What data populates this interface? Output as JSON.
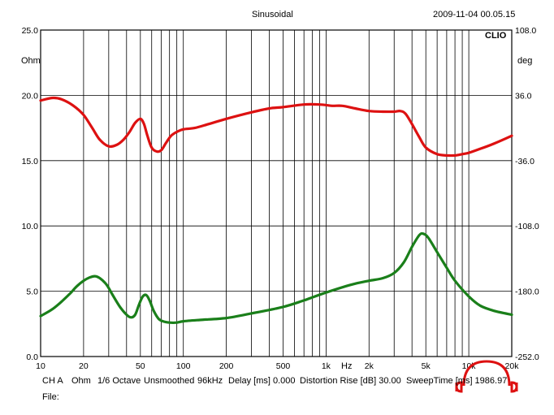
{
  "header": {
    "title": "Sinusoidal",
    "datetime": "2009-11-04 00.05.15",
    "brand": "CLIO"
  },
  "footer": {
    "channel": "CH A",
    "unit": "Ohm",
    "smoothing": "1/6 Octave",
    "smoothing_state": "Unsmoothed",
    "sample_rate": "96kHz",
    "delay": "Delay [ms] 0.000",
    "distortion": "Distortion Rise [dB] 30.00",
    "sweep": "SweepTime [ms] 1986.97",
    "file_label": "File:"
  },
  "colors": {
    "impedance": "#dd1111",
    "phase": "#1a7f1a",
    "logo": "#dd1111",
    "grid": "#000000"
  },
  "chart_data": {
    "type": "line",
    "title": "Sinusoidal",
    "x_scale": "log",
    "xlim": [
      10,
      20000
    ],
    "x_ticks": [
      {
        "v": 10,
        "label": "10"
      },
      {
        "v": 20,
        "label": "20"
      },
      {
        "v": 50,
        "label": "50"
      },
      {
        "v": 100,
        "label": "100"
      },
      {
        "v": 200,
        "label": "200"
      },
      {
        "v": 500,
        "label": "500"
      },
      {
        "v": 1000,
        "label": "1k"
      },
      {
        "v": 2000,
        "label": "2k"
      },
      {
        "v": 5000,
        "label": "5k"
      },
      {
        "v": 10000,
        "label": "10k"
      },
      {
        "v": 20000,
        "label": "20k"
      }
    ],
    "x_unit": "Hz",
    "left_axis": {
      "unit": "Ohm",
      "lim": [
        0,
        25
      ],
      "ticks": [
        "0.0",
        "5.0",
        "10.0",
        "15.0",
        "20.0",
        "25.0"
      ],
      "tick_values": [
        0,
        5,
        10,
        15,
        20,
        25
      ]
    },
    "right_axis": {
      "unit": "deg",
      "lim": [
        -252,
        108
      ],
      "ticks": [
        "-252.0",
        "-180.0",
        "-108.0",
        "-36.0",
        "36.0",
        "108.0"
      ],
      "tick_values": [
        -252,
        -180,
        -108,
        -36,
        36,
        108
      ]
    },
    "grid": true,
    "series": [
      {
        "color": "#dd1111",
        "axis": "left",
        "points": [
          [
            10,
            19.6
          ],
          [
            12,
            19.8
          ],
          [
            14,
            19.7
          ],
          [
            17,
            19.2
          ],
          [
            20,
            18.5
          ],
          [
            23,
            17.5
          ],
          [
            26,
            16.6
          ],
          [
            30,
            16.1
          ],
          [
            34,
            16.2
          ],
          [
            38,
            16.6
          ],
          [
            42,
            17.2
          ],
          [
            46,
            17.9
          ],
          [
            50,
            18.2
          ],
          [
            53,
            17.8
          ],
          [
            56,
            16.9
          ],
          [
            60,
            16.0
          ],
          [
            65,
            15.7
          ],
          [
            70,
            15.8
          ],
          [
            76,
            16.4
          ],
          [
            82,
            16.9
          ],
          [
            90,
            17.2
          ],
          [
            100,
            17.4
          ],
          [
            120,
            17.5
          ],
          [
            150,
            17.8
          ],
          [
            200,
            18.2
          ],
          [
            300,
            18.7
          ],
          [
            400,
            19.0
          ],
          [
            500,
            19.1
          ],
          [
            700,
            19.3
          ],
          [
            900,
            19.3
          ],
          [
            1100,
            19.2
          ],
          [
            1300,
            19.2
          ],
          [
            1600,
            19.0
          ],
          [
            2000,
            18.8
          ],
          [
            2500,
            18.75
          ],
          [
            3000,
            18.75
          ],
          [
            3300,
            18.8
          ],
          [
            3600,
            18.6
          ],
          [
            4000,
            17.8
          ],
          [
            4500,
            16.8
          ],
          [
            5000,
            16.0
          ],
          [
            6000,
            15.5
          ],
          [
            7000,
            15.4
          ],
          [
            8000,
            15.4
          ],
          [
            9000,
            15.5
          ],
          [
            10000,
            15.6
          ],
          [
            12000,
            15.9
          ],
          [
            15000,
            16.3
          ],
          [
            20000,
            16.9
          ]
        ]
      },
      {
        "color": "#1a7f1a",
        "axis": "left",
        "points": [
          [
            10,
            3.1
          ],
          [
            12,
            3.6
          ],
          [
            14,
            4.2
          ],
          [
            16,
            4.8
          ],
          [
            18,
            5.4
          ],
          [
            20,
            5.8
          ],
          [
            22,
            6.05
          ],
          [
            24,
            6.15
          ],
          [
            26,
            6.0
          ],
          [
            29,
            5.5
          ],
          [
            32,
            4.7
          ],
          [
            36,
            3.8
          ],
          [
            40,
            3.2
          ],
          [
            43,
            3.0
          ],
          [
            46,
            3.2
          ],
          [
            49,
            4.0
          ],
          [
            52,
            4.6
          ],
          [
            55,
            4.7
          ],
          [
            58,
            4.3
          ],
          [
            62,
            3.5
          ],
          [
            67,
            2.9
          ],
          [
            72,
            2.7
          ],
          [
            80,
            2.6
          ],
          [
            90,
            2.6
          ],
          [
            100,
            2.7
          ],
          [
            130,
            2.8
          ],
          [
            200,
            2.95
          ],
          [
            300,
            3.3
          ],
          [
            500,
            3.8
          ],
          [
            700,
            4.3
          ],
          [
            1000,
            4.9
          ],
          [
            1500,
            5.5
          ],
          [
            2000,
            5.8
          ],
          [
            2500,
            6.0
          ],
          [
            3000,
            6.4
          ],
          [
            3500,
            7.2
          ],
          [
            4000,
            8.4
          ],
          [
            4500,
            9.3
          ],
          [
            4800,
            9.4
          ],
          [
            5200,
            9.1
          ],
          [
            6000,
            8.0
          ],
          [
            7000,
            6.8
          ],
          [
            8000,
            5.8
          ],
          [
            10000,
            4.6
          ],
          [
            12000,
            3.9
          ],
          [
            15000,
            3.5
          ],
          [
            20000,
            3.2
          ]
        ]
      }
    ]
  }
}
